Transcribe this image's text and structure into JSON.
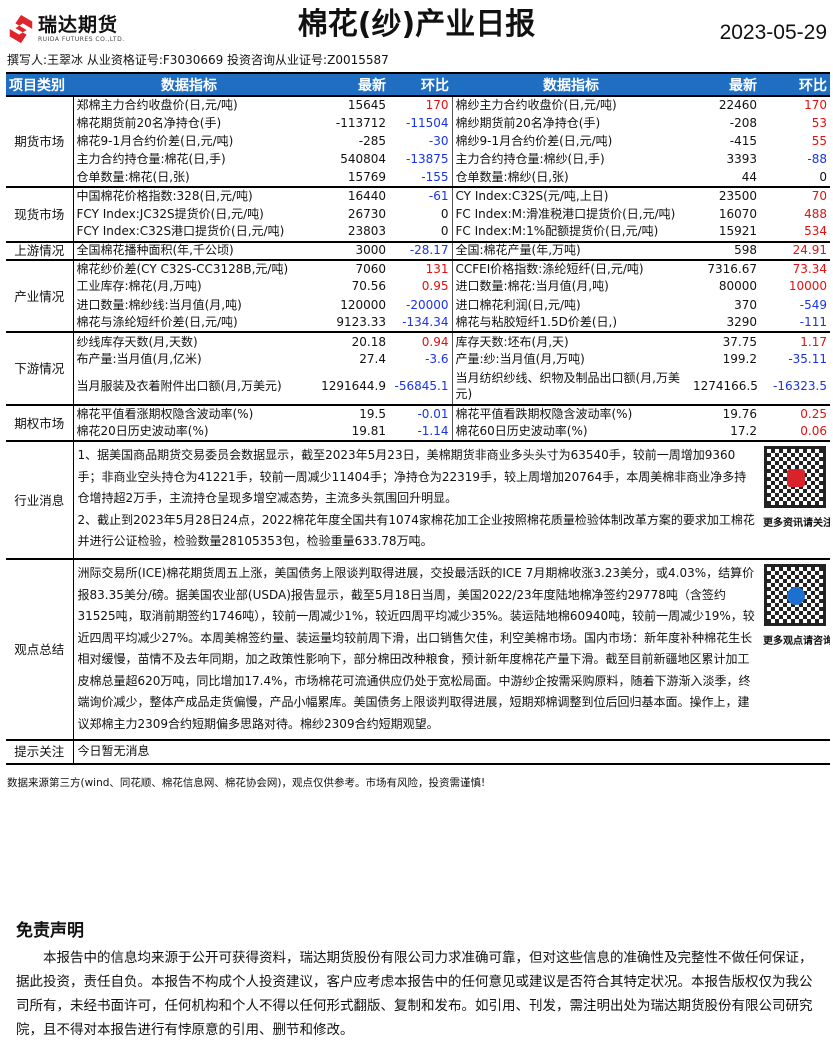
{
  "header": {
    "logo_cn": "瑞达期货",
    "logo_en": "RUIDA FUTURES CO.,LTD.",
    "title": "棉花(纱)产业日报",
    "date": "2023-05-29",
    "author": "撰写人:王翠冰 从业资格证号:F3030669 投资咨询从业证号:Z0015587"
  },
  "columns": [
    "项目类别",
    "数据指标",
    "最新",
    "环比",
    "数据指标",
    "最新",
    "环比"
  ],
  "colors": {
    "header_bg": "#1f6ec2",
    "up": "#e31010",
    "down": "#1a33e6"
  },
  "sections": [
    {
      "category": "期货市场",
      "rows": [
        [
          "郑棉主力合约收盘价(日,元/吨)",
          "15645",
          "170",
          "棉纱主力合约收盘价(日,元/吨)",
          "22460",
          "170"
        ],
        [
          "棉花期货前20名净持仓(手)",
          "-113712",
          "-11504",
          "棉纱期货前20名净持仓(手)",
          "-208",
          "53"
        ],
        [
          "棉花9-1月合约价差(日,元/吨)",
          "-285",
          "-30",
          "棉纱9-1月合约价差(日,元/吨)",
          "-415",
          "55"
        ],
        [
          "主力合约持仓量:棉花(日,手)",
          "540804",
          "-13875",
          "主力合约持仓量:棉纱(日,手)",
          "3393",
          "-88"
        ],
        [
          "仓单数量:棉花(日,张)",
          "15769",
          "-155",
          "仓单数量:棉纱(日,张)",
          "44",
          "0"
        ]
      ]
    },
    {
      "category": "现货市场",
      "rows": [
        [
          "中国棉花价格指数:328(日,元/吨)",
          "16440",
          "-61",
          "CY Index:C32S(元/吨,上日)",
          "23500",
          "70"
        ],
        [
          "FCY Index:JC32S提货价(日,元/吨)",
          "26730",
          "0",
          "FC Index:M:滑准税港口提货价(日,元/吨)",
          "16070",
          "488"
        ],
        [
          "FCY Index:C32S港口提货价(日,元/吨)",
          "23803",
          "0",
          "FC Index:M:1%配额提货价(日,元/吨)",
          "15921",
          "534"
        ]
      ]
    },
    {
      "category": "上游情况",
      "rows": [
        [
          "全国棉花播种面积(年,千公顷)",
          "3000",
          "-28.17",
          "全国:棉花产量(年,万吨)",
          "598",
          "24.91"
        ]
      ]
    },
    {
      "category": "产业情况",
      "rows": [
        [
          "棉花纱价差(CY C32S-CC3128B,元/吨)",
          "7060",
          "131",
          "CCFEI价格指数:涤纶短纤(日,元/吨)",
          "7316.67",
          "73.34"
        ],
        [
          "工业库存:棉花(月,万吨)",
          "70.56",
          "0.95",
          "进口数量:棉花:当月值(月,吨)",
          "80000",
          "10000"
        ],
        [
          "进口数量:棉纱线:当月值(月,吨)",
          "120000",
          "-20000",
          "进口棉花利润(日,元/吨)",
          "370",
          "-549"
        ],
        [
          "棉花与涤纶短纤价差(日,元/吨)",
          "9123.33",
          "-134.34",
          "棉花与粘胶短纤1.5D价差(日,)",
          "3290",
          "-111"
        ]
      ]
    },
    {
      "category": "下游情况",
      "rows": [
        [
          "纱线库存天数(月,天数)",
          "20.18",
          "0.94",
          "库存天数:坯布(月,天)",
          "37.75",
          "1.17"
        ],
        [
          "布产量:当月值(月,亿米)",
          "27.4",
          "-3.6",
          "产量:纱:当月值(月,万吨)",
          "199.2",
          "-35.11"
        ],
        [
          "当月服装及衣着附件出口额(月,万美元)",
          "1291644.9",
          "-56845.1",
          "当月纺织纱线、织物及制品出口额(月,万美元)",
          "1274166.5",
          "-16323.5"
        ]
      ]
    },
    {
      "category": "期权市场",
      "rows": [
        [
          "棉花平值看涨期权隐含波动率(%)",
          "19.5",
          "-0.01",
          "棉花平值看跌期权隐含波动率(%)",
          "19.76",
          "0.25"
        ],
        [
          "棉花20日历史波动率(%)",
          "19.81",
          "-1.14",
          "棉花60日历史波动率(%)",
          "17.2",
          "0.06"
        ]
      ]
    }
  ],
  "news": {
    "category": "行业消息",
    "paragraphs": [
      "1、据美国商品期货交易委员会数据显示，截至2023年5月23日，美棉期货非商业多头头寸为63540手，较前一周增加9360手；非商业空头持仓为41221手，较前一周减少11404手；净持仓为22319手，较上周增加20764手，本周美棉非商业净多持仓增持超2万手，主流持仓呈现多增空减态势，主流多头氛围回升明显。",
      "2、截止到2023年5月28日24点，2022棉花年度全国共有1074家棉花加工企业按照棉花质量检验体制改革方案的要求加工棉花并进行公证检验，检验数量28105353包，检验重量633.78万吨。"
    ],
    "qr_caption": "更多资讯请关注!"
  },
  "view": {
    "category": "观点总结",
    "text": "洲际交易所(ICE)棉花期货周五上涨，美国债务上限谈判取得进展，交投最活跃的ICE 7月期棉收涨3.23美分，或4.03%，结算价报83.35美分/磅。据美国农业部(USDA)报告显示，截至5月18日当周，美国2022/23年度陆地棉净签约29778吨（含签约31525吨，取消前期签约1746吨），较前一周减少1%，较近四周平均减少35%。装运陆地棉60940吨，较前一周减少19%，较近四周平均减少27%。本周美棉签约量、装运量均较前周下滑，出口销售欠佳，利空美棉市场。国内市场：新年度补种棉花生长相对缓慢，苗情不及去年同期，加之政策性影响下，部分棉田改种粮食，预计新年度棉花产量下滑。截至目前新疆地区累计加工皮棉总量超620万吨，同比增加17.4%，市场棉花可流通供应仍处于宽松局面。中游纱企按需采购原料，随着下游渐入淡季，终端询价减少，整体产成品走货偏慢，产品小幅累库。美国债务上限谈判取得进展，短期郑棉调整到位后回归基本面。操作上，建议郑棉主力2309合约短期偏多思路对待。棉纱2309合约短期观望。",
    "qr_caption": "更多观点请咨询!"
  },
  "notice": {
    "category": "提示关注",
    "text": "今日暂无消息"
  },
  "footnote": "数据来源第三方(wind、同花顺、棉花信息网、棉花协会网)，观点仅供参考。市场有风险，投资需谨慎!",
  "disclaimer": {
    "title": "免责声明",
    "text": "本报告中的信息均来源于公开可获得资料，瑞达期货股份有限公司力求准确可靠，但对这些信息的准确性及完整性不做任何保证，据此投资，责任自负。本报告不构成个人投资建议，客户应考虑本报告中的任何意见或建议是否符合其特定状况。本报告版权仅为我公司所有，未经书面许可，任何机构和个人不得以任何形式翻版、复制和发布。如引用、刊发，需注明出处为瑞达期货股份有限公司研究院，且不得对本报告进行有悖原意的引用、删节和修改。"
  }
}
